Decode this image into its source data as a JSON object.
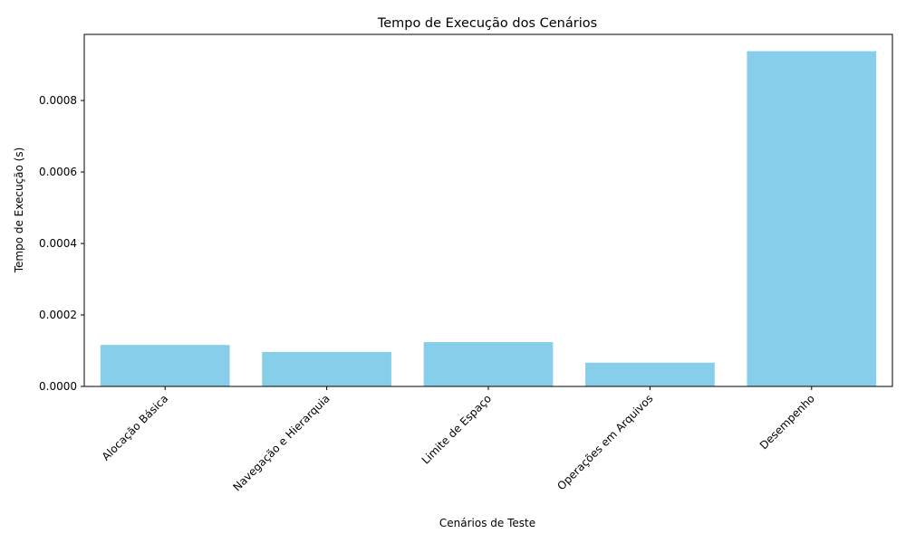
{
  "chart_data": {
    "type": "bar",
    "title": "Tempo de Execução dos Cenários",
    "xlabel": "Cenários de Teste",
    "ylabel": "Tempo de Execução (s)",
    "categories": [
      "Alocação Básica",
      "Navegação e Hierarquia",
      "Limite de Espaço",
      "Operações em Arquivos",
      "Desempenho"
    ],
    "values": [
      0.000116,
      9.65e-05,
      0.000124,
      6.65e-05,
      0.000938
    ],
    "ylim": [
      0,
      0.000985
    ],
    "yticks": [
      0,
      0.0002,
      0.0004,
      0.0006,
      0.0008
    ],
    "ytick_labels": [
      "0.0000",
      "0.0002",
      "0.0004",
      "0.0006",
      "0.0008"
    ],
    "bar_color": "#87ceeb",
    "grid": false,
    "legend": "none"
  }
}
